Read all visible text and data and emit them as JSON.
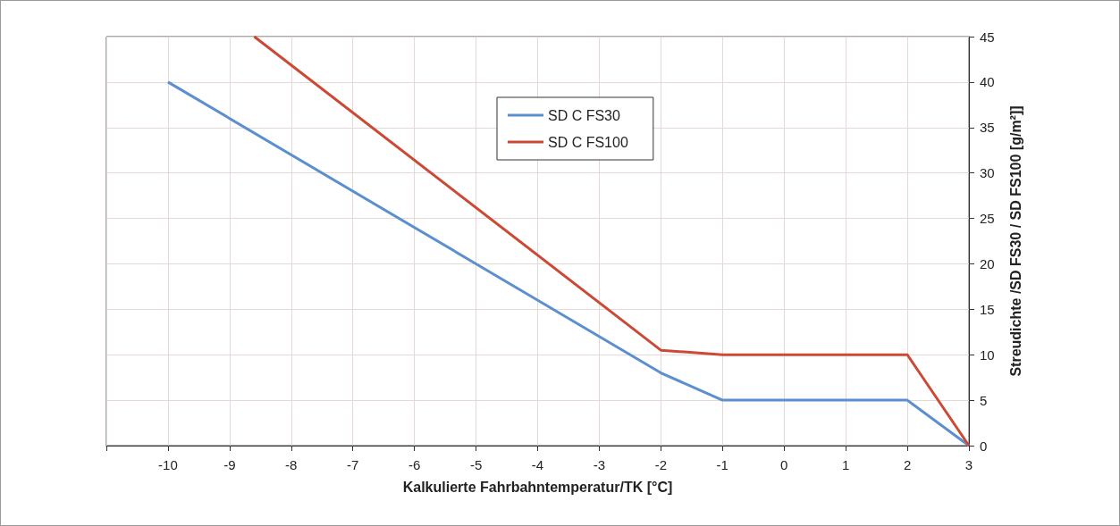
{
  "chart_data": {
    "type": "line",
    "xlabel": "Kalkulierte Fahrbahntemperatur/TK [°C]",
    "ylabel": "Streudichte /SD FS30 / SD FS100 [g/m²]]",
    "xlim": [
      -11,
      3
    ],
    "xticks": [
      {
        "value": -11,
        "label": null
      },
      -10,
      -9,
      -8,
      -7,
      -6,
      -5,
      -4,
      -3,
      -2,
      -1,
      0,
      1,
      2,
      3
    ],
    "ylim": [
      0,
      45
    ],
    "yticks": [
      0,
      5,
      10,
      15,
      20,
      25,
      30,
      35,
      40,
      45
    ],
    "grid": true,
    "legend": "top",
    "marker": "none",
    "line_style": "solid",
    "series": [
      {
        "name": "SD C FS30",
        "color": "#5b8fcf",
        "x": [
          -10,
          -5,
          -2,
          -1,
          2,
          3
        ],
        "values": [
          40,
          20,
          8,
          5,
          5,
          0
        ]
      },
      {
        "name": "SD C FS100",
        "color": "#cc4a35",
        "x": [
          -8.6,
          -2,
          -1,
          2,
          3
        ],
        "values": [
          45,
          10.5,
          10,
          10,
          0
        ]
      }
    ]
  }
}
